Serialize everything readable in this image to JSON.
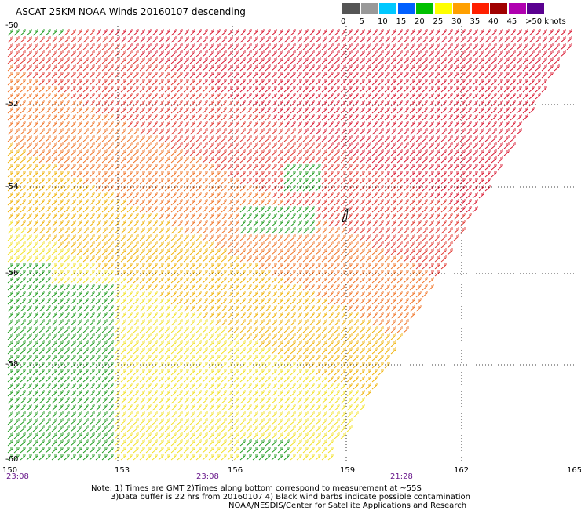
{
  "title": "ASCAT 25KM NOAA Winds 20160107 descending",
  "colorbar": {
    "labels": [
      "0",
      "5",
      "10",
      "15",
      "20",
      "25",
      "30",
      "35",
      "40",
      "45",
      ">50 knots"
    ],
    "colors": [
      "#555555",
      "#999999",
      "#00c8ff",
      "#0060ff",
      "#00c000",
      "#ffff00",
      "#ffa000",
      "#ff2000",
      "#a00000",
      "#b000b0",
      "#5a0090"
    ]
  },
  "axes": {
    "lat_labels": [
      "-50",
      "-52",
      "-54",
      "-56",
      "-58",
      "-60"
    ],
    "lon_labels": [
      "150",
      "153",
      "156",
      "159",
      "162",
      "165"
    ]
  },
  "times": [
    "23:08",
    "23:08",
    "21:28"
  ],
  "notes": {
    "line1": "Note: 1) Times are GMT 2)Times along bottom correspond to measurement at ~55S",
    "line2": "3)Data buffer is 22 hrs from 20160107 4) Black wind barbs indicate possible contamination",
    "line3": "NOAA/NESDIS/Center for Satellite Applications and Research"
  }
}
